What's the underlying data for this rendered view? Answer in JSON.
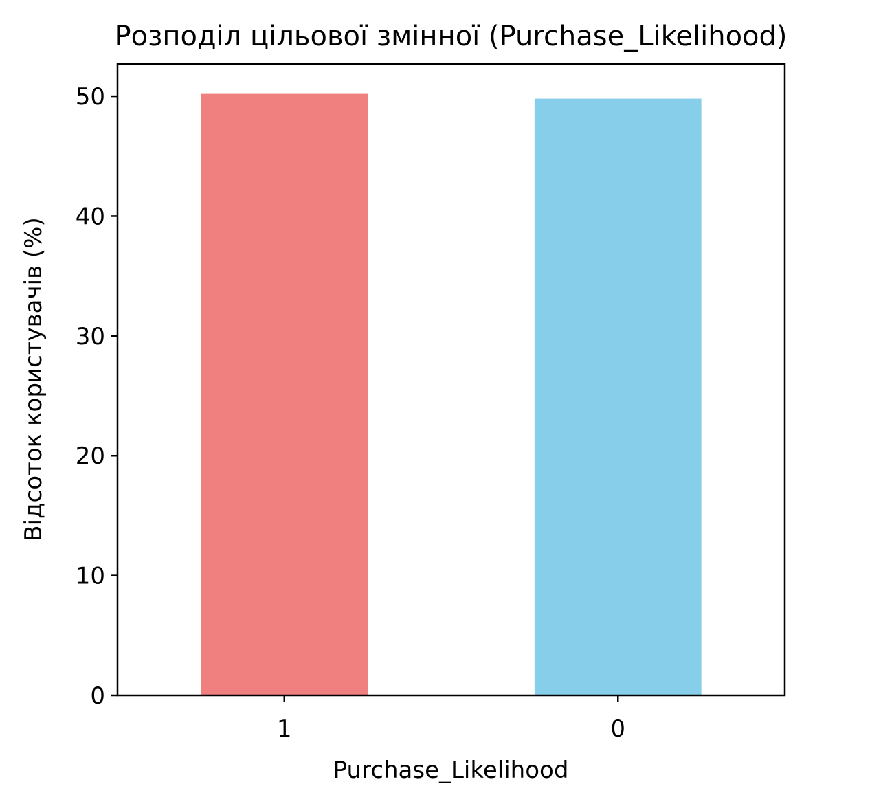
{
  "chart_data": {
    "type": "bar",
    "title": "Розподіл цільової змінної (Purchase_Likelihood)",
    "xlabel": "Purchase_Likelihood",
    "ylabel": "Відсоток користувачів (%)",
    "categories": [
      "1",
      "0"
    ],
    "values": [
      50.2,
      49.8
    ],
    "colors": [
      "#f08080",
      "#87ceeb"
    ],
    "ylim": [
      0,
      52.7
    ],
    "yticks": [
      0,
      10,
      20,
      30,
      40,
      50
    ],
    "grid": false,
    "legend": "none"
  }
}
